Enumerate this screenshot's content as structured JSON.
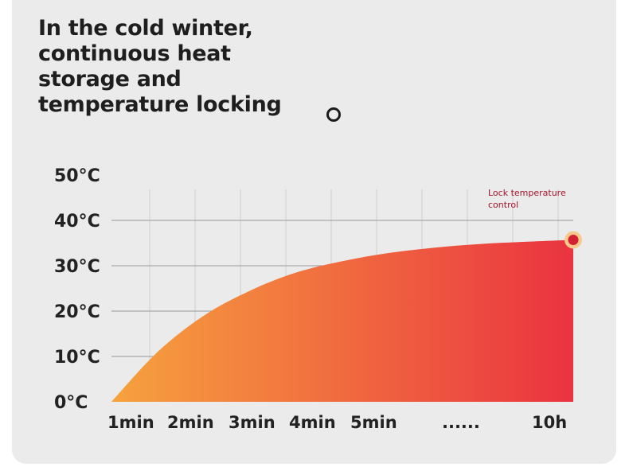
{
  "title": "In the cold winter, continuous heat storage and temperature locking",
  "chart_data": {
    "type": "area",
    "title": "In the cold winter, continuous heat storage and temperature locking",
    "xlabel": "",
    "ylabel": "",
    "y_unit": "°C",
    "ylim": [
      0,
      50
    ],
    "yticks": [
      0,
      10,
      20,
      30,
      40,
      50
    ],
    "ytick_labels": [
      "0°C",
      "10°C",
      "20°C",
      "30°C",
      "40°C",
      "50°C"
    ],
    "categories": [
      "1min",
      "2min",
      "3min",
      "4min",
      "5min",
      "......",
      "10h"
    ],
    "x": [
      0,
      1,
      2,
      3,
      4,
      5,
      6,
      7,
      8,
      9,
      10
    ],
    "values": [
      0,
      11,
      19,
      24.5,
      28.5,
      31,
      32.8,
      34,
      34.8,
      35.3,
      35.7
    ],
    "endpoint": {
      "x": 10,
      "y": 35.7,
      "label": "Lock temperature control"
    },
    "colors": {
      "gradient_start": "#f6a23e",
      "gradient_end": "#ea3340",
      "endpoint_dot": "#d42033",
      "endpoint_ring": "#f7c98a"
    },
    "grid": true,
    "legend": "none"
  }
}
